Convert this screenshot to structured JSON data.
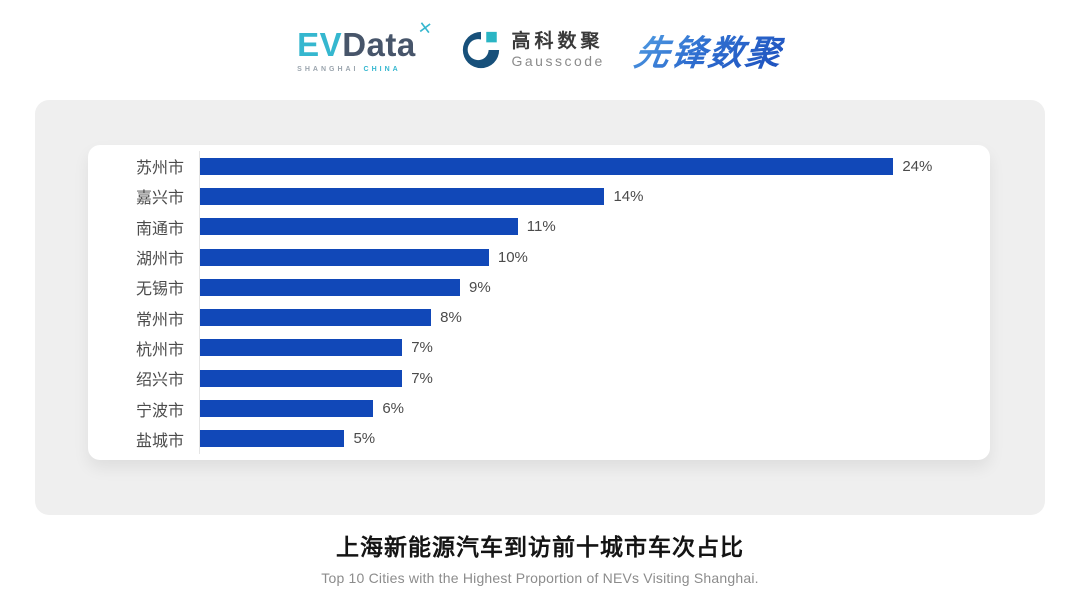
{
  "header": {
    "logos": {
      "evdata": {
        "ev": "EV",
        "data": "Data",
        "sup": "✕",
        "tagline_left": "SHANGHAI",
        "tagline_right": "CHINA"
      },
      "gausscode": {
        "cn": "高科数聚",
        "en": "Gausscode"
      },
      "xianfeng": {
        "text": "先锋数聚"
      }
    }
  },
  "chart_data": {
    "type": "bar",
    "orientation": "horizontal",
    "title": "上海新能源汽车到访前十城市车次占比",
    "subtitle": "Top 10 Cities with the Highest Proportion of  NEVs Visiting Shanghai.",
    "categories": [
      "苏州市",
      "嘉兴市",
      "南通市",
      "湖州市",
      "无锡市",
      "常州市",
      "杭州市",
      "绍兴市",
      "宁波市",
      "盐城市"
    ],
    "values": [
      24,
      14,
      11,
      10,
      9,
      8,
      7,
      7,
      6,
      5
    ],
    "value_labels": [
      "24%",
      "14%",
      "11%",
      "10%",
      "9%",
      "8%",
      "7%",
      "7%",
      "6%",
      "5%"
    ],
    "xlim": [
      0,
      27
    ],
    "bar_color": "#1148b8",
    "grid": false,
    "legend": false,
    "value_label_position": "end-of-bar"
  },
  "colors": {
    "bar": "#1148b8",
    "panel_bg": "#efefef",
    "card_bg": "#ffffff",
    "axis_line": "#e5e5e5",
    "category_text": "#4b4b4b",
    "title_text": "#141414",
    "subtitle_text": "#8c8c8c",
    "evdata_teal": "#35b7cf",
    "evdata_slate": "#47556a",
    "gausscode_navy": "#17507a",
    "gausscode_teal": "#2ab5c4",
    "xianfeng_blue_start": "#55a2e4",
    "xianfeng_blue_end": "#1d4fbd"
  }
}
